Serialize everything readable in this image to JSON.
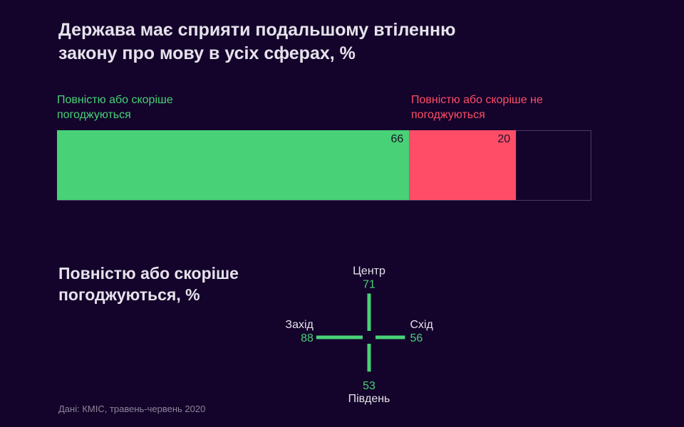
{
  "title": "Держава має сприяти подальшому втіленню закону про мову в усіх сферах, %",
  "subtitle": "Повністю або скоріше погоджуються, %",
  "source": "Дані: КМІС, травень-червень 2020",
  "colors": {
    "background": "#14042b",
    "agree": "#48d177",
    "disagree": "#ff4d68",
    "text": "#e6e2ec"
  },
  "chart_data": [
    {
      "type": "bar",
      "orientation": "horizontal-stacked",
      "title": "Держава має сприяти подальшому втіленню закону про мову в усіх сферах, %",
      "series": [
        {
          "name": "Повністю або скоріше погоджуються",
          "values": [
            66
          ],
          "color": "#48d177"
        },
        {
          "name": "Повністю або скоріше не погоджуються",
          "values": [
            20
          ],
          "color": "#ff4d68"
        }
      ],
      "total": 100,
      "legend_position": "top"
    },
    {
      "type": "bar",
      "layout": "cross",
      "title": "Повністю або скоріше погоджуються, %",
      "categories": [
        "Центр",
        "Захід",
        "Схід",
        "Південь"
      ],
      "values": [
        71,
        88,
        56,
        53
      ],
      "color": "#48d177"
    }
  ]
}
